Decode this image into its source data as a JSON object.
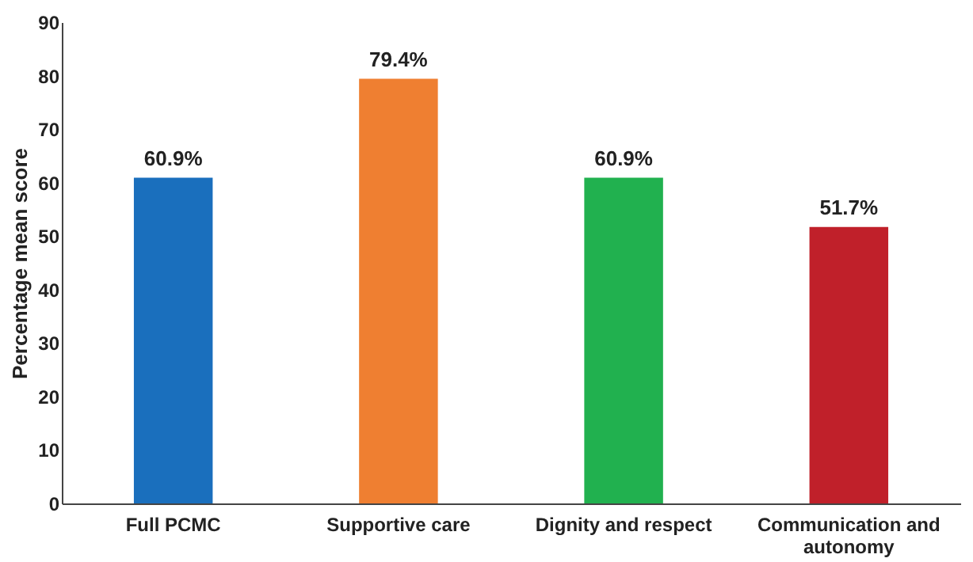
{
  "chart_data": {
    "type": "bar",
    "ylabel": "Percentage mean score",
    "categories": [
      "Full PCMC",
      "Supportive care",
      "Dignity and respect",
      "Communication and autonomy"
    ],
    "values": [
      60.9,
      79.4,
      60.9,
      51.7
    ],
    "colors": [
      "#1a6fbd",
      "#ef7f31",
      "#21b14f",
      "#c0202a"
    ],
    "value_labels": [
      "60.9%",
      "79.4%",
      "60.9%",
      "51.7%"
    ],
    "ylim": [
      0,
      90
    ],
    "yticks": [
      0,
      10,
      20,
      30,
      40,
      50,
      60,
      70,
      80,
      90
    ],
    "grid": false
  }
}
